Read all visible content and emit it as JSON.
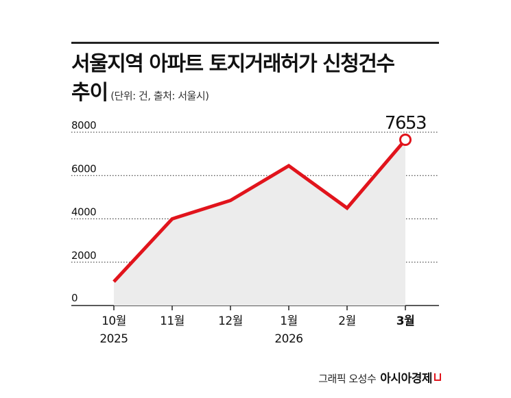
{
  "title": "서울지역 아파트 토지거래허가 신청건수",
  "title_line2": "추이",
  "subtitle": "(단위: 건, 출처: 서울시)",
  "credit": "그래픽 오성수",
  "brand": "아시아경제",
  "colors": {
    "line": "#e1141c",
    "area": "#ececec",
    "grid": "#222222"
  },
  "chart_data": {
    "type": "area",
    "categories": [
      "10월",
      "11월",
      "12월",
      "1월",
      "2월",
      "3월"
    ],
    "year_labels": [
      "2025",
      "",
      "",
      "2026",
      "",
      ""
    ],
    "values": [
      1100,
      4000,
      4850,
      6450,
      4500,
      7653
    ],
    "highlight": {
      "index": 5,
      "label": "7653"
    },
    "yticks": [
      "8000",
      "6000",
      "4000",
      "2000",
      "0"
    ],
    "ylim": [
      0,
      8000
    ],
    "grid": true,
    "title": "서울지역 아파트 토지거래허가 신청건수 추이",
    "xlabel": "",
    "ylabel": ""
  }
}
